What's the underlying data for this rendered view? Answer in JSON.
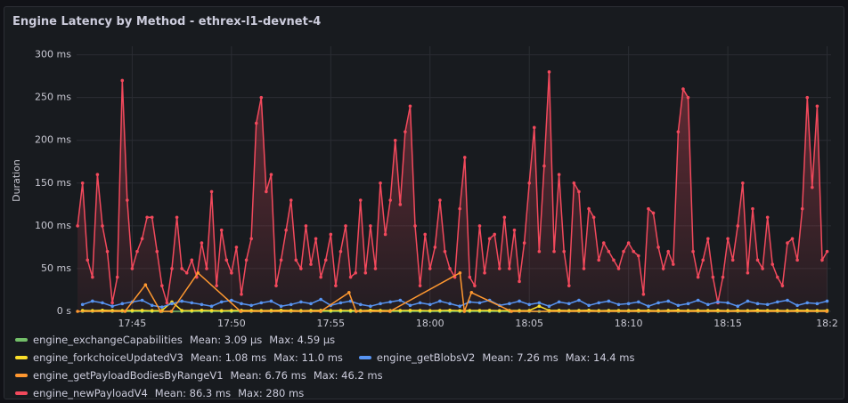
{
  "chart_data": {
    "type": "line",
    "title": "Engine Latency by Method - ethrex-l1-devnet-4",
    "y_label": "Duration",
    "xlim": [
      1062.2,
      1100.2
    ],
    "xticks": [
      {
        "value": 1065,
        "label": "17:45"
      },
      {
        "value": 1070,
        "label": "17:50"
      },
      {
        "value": 1075,
        "label": "17:55"
      },
      {
        "value": 1080,
        "label": "18:00"
      },
      {
        "value": 1085,
        "label": "18:05"
      },
      {
        "value": 1090,
        "label": "18:10"
      },
      {
        "value": 1095,
        "label": "18:15"
      },
      {
        "value": 1100,
        "label": "18:2"
      }
    ],
    "ylim": [
      0,
      310
    ],
    "yticks": [
      {
        "value": 0,
        "label": "0 s"
      },
      {
        "value": 50,
        "label": "50 ms"
      },
      {
        "value": 100,
        "label": "100 ms"
      },
      {
        "value": 150,
        "label": "150 ms"
      },
      {
        "value": 200,
        "label": "200 ms"
      },
      {
        "value": 250,
        "label": "250 ms"
      },
      {
        "value": 300,
        "label": "300 ms"
      }
    ],
    "grid": true,
    "series": [
      {
        "name": "engine_newPayloadV4",
        "color": "#f2495c",
        "fill": true,
        "stats": [
          "Mean: 86.3 ms",
          "Max: 280 ms"
        ],
        "x": [
          1062.25,
          1062.5,
          1062.75,
          1063,
          1063.25,
          1063.5,
          1063.75,
          1064,
          1064.25,
          1064.5,
          1064.75,
          1065,
          1065.25,
          1065.5,
          1065.75,
          1066,
          1066.25,
          1066.5,
          1066.75,
          1067,
          1067.25,
          1067.5,
          1067.75,
          1068,
          1068.25,
          1068.5,
          1068.75,
          1069,
          1069.25,
          1069.5,
          1069.75,
          1070,
          1070.25,
          1070.5,
          1070.75,
          1071,
          1071.25,
          1071.5,
          1071.75,
          1072,
          1072.25,
          1072.5,
          1072.75,
          1073,
          1073.25,
          1073.5,
          1073.75,
          1074,
          1074.25,
          1074.5,
          1074.75,
          1075,
          1075.25,
          1075.5,
          1075.75,
          1076,
          1076.25,
          1076.5,
          1076.75,
          1077,
          1077.25,
          1077.5,
          1077.75,
          1078,
          1078.25,
          1078.5,
          1078.75,
          1079,
          1079.25,
          1079.5,
          1079.75,
          1080,
          1080.25,
          1080.5,
          1080.75,
          1081,
          1081.25,
          1081.5,
          1081.75,
          1082,
          1082.25,
          1082.5,
          1082.75,
          1083,
          1083.25,
          1083.5,
          1083.75,
          1084,
          1084.25,
          1084.5,
          1084.75,
          1085,
          1085.25,
          1085.5,
          1085.75,
          1086,
          1086.25,
          1086.5,
          1086.75,
          1087,
          1087.25,
          1087.5,
          1087.75,
          1088,
          1088.25,
          1088.5,
          1088.75,
          1089,
          1089.25,
          1089.5,
          1089.75,
          1090,
          1090.25,
          1090.5,
          1090.75,
          1091,
          1091.25,
          1091.5,
          1091.75,
          1092,
          1092.25,
          1092.5,
          1092.75,
          1093,
          1093.25,
          1093.5,
          1093.75,
          1094,
          1094.25,
          1094.5,
          1094.75,
          1095,
          1095.25,
          1095.5,
          1095.75,
          1096,
          1096.25,
          1096.5,
          1096.75,
          1097,
          1097.25,
          1097.5,
          1097.75,
          1098,
          1098.25,
          1098.5,
          1098.75,
          1099,
          1099.25,
          1099.5,
          1099.75,
          1100
        ],
        "values": [
          100,
          150,
          60,
          40,
          160,
          100,
          70,
          10,
          40,
          270,
          130,
          50,
          70,
          85,
          110,
          110,
          70,
          30,
          10,
          50,
          110,
          50,
          45,
          60,
          40,
          80,
          50,
          140,
          30,
          95,
          60,
          45,
          75,
          20,
          60,
          85,
          220,
          250,
          140,
          160,
          30,
          60,
          95,
          130,
          60,
          50,
          100,
          55,
          85,
          40,
          60,
          90,
          30,
          70,
          100,
          40,
          45,
          130,
          45,
          100,
          50,
          150,
          90,
          130,
          200,
          125,
          210,
          240,
          100,
          30,
          90,
          50,
          75,
          130,
          70,
          50,
          40,
          120,
          180,
          40,
          30,
          100,
          45,
          85,
          90,
          50,
          110,
          50,
          95,
          35,
          80,
          150,
          215,
          70,
          170,
          280,
          70,
          160,
          70,
          30,
          150,
          140,
          50,
          120,
          110,
          60,
          80,
          70,
          60,
          50,
          70,
          80,
          70,
          65,
          20,
          120,
          115,
          75,
          50,
          70,
          55,
          210,
          260,
          250,
          70,
          40,
          60,
          85,
          40,
          10,
          40,
          85,
          60,
          100,
          150,
          45,
          120,
          60,
          50,
          110,
          55,
          40,
          30,
          80,
          85,
          60,
          120,
          250,
          145,
          240,
          60,
          70
        ]
      },
      {
        "name": "engine_exchangeCapabilities",
        "color": "#73bf69",
        "stats": [
          "Mean: 3.09 µs",
          "Max: 4.59 µs"
        ],
        "x": [
          1062.5,
          1063,
          1063.5,
          1064,
          1064.5,
          1065,
          1065.5,
          1066,
          1066.5,
          1067,
          1067.5,
          1068,
          1068.5,
          1069,
          1069.5,
          1070,
          1070.5,
          1071,
          1071.5,
          1072,
          1072.5,
          1073,
          1073.5,
          1074,
          1074.5,
          1075,
          1075.5,
          1076,
          1076.5,
          1077,
          1077.5,
          1078,
          1078.5,
          1079,
          1079.5,
          1080,
          1080.5,
          1081,
          1081.5,
          1082,
          1082.5,
          1083,
          1083.5,
          1084,
          1084.5,
          1085,
          1085.5,
          1086,
          1086.5,
          1087,
          1087.5,
          1088,
          1088.5,
          1089,
          1089.5,
          1090,
          1090.5,
          1091,
          1091.5,
          1092,
          1092.5,
          1093,
          1093.5,
          1094,
          1094.5,
          1095,
          1095.5,
          1096,
          1096.5,
          1097,
          1097.5,
          1098,
          1098.5,
          1099,
          1099.5,
          1100
        ],
        "values": [
          0.003,
          0.0031,
          0.0029,
          0.003,
          0.0032,
          0.0028,
          0.003,
          0.0031,
          0.0046,
          0.003,
          0.0029,
          0.003,
          0.0031,
          0.003,
          0.0028,
          0.003,
          0.0032,
          0.003,
          0.0029,
          0.0031,
          0.003,
          0.003,
          0.0028,
          0.0031,
          0.003,
          0.0029,
          0.003,
          0.0032,
          0.003,
          0.0031,
          0.003,
          0.0029,
          0.003,
          0.0031,
          0.0028,
          0.003,
          0.0032,
          0.003,
          0.0029,
          0.0031,
          0.003,
          0.003,
          0.0029,
          0.0031,
          0.003,
          0.0028,
          0.003,
          0.0032,
          0.003,
          0.0029,
          0.0031,
          0.003,
          0.003,
          0.0028,
          0.0031,
          0.003,
          0.0029,
          0.003,
          0.0032,
          0.003,
          0.0031,
          0.003,
          0.0029,
          0.003,
          0.0031,
          0.0028,
          0.003,
          0.0032,
          0.003,
          0.0029,
          0.0031,
          0.003,
          0.003,
          0.0029,
          0.0031,
          0.003
        ]
      },
      {
        "name": "engine_forkchoiceUpdatedV3",
        "color": "#fade2a",
        "stats": [
          "Mean: 1.08 ms",
          "Max: 11.0 ms"
        ],
        "x": [
          1062.5,
          1063,
          1063.5,
          1064,
          1064.5,
          1065,
          1065.5,
          1066,
          1066.5,
          1067,
          1067.5,
          1068,
          1068.5,
          1069,
          1069.5,
          1070,
          1070.5,
          1071,
          1071.5,
          1072,
          1072.5,
          1073,
          1073.5,
          1074,
          1074.5,
          1075,
          1075.5,
          1076,
          1076.5,
          1077,
          1077.5,
          1078,
          1078.5,
          1079,
          1079.5,
          1080,
          1080.5,
          1081,
          1081.5,
          1082,
          1082.5,
          1083,
          1083.5,
          1084,
          1084.5,
          1085,
          1085.5,
          1086,
          1086.5,
          1087,
          1087.5,
          1088,
          1088.5,
          1089,
          1089.5,
          1090,
          1090.5,
          1091,
          1091.5,
          1092,
          1092.5,
          1093,
          1093.5,
          1094,
          1094.5,
          1095,
          1095.5,
          1096,
          1096.5,
          1097,
          1097.5,
          1098,
          1098.5,
          1099,
          1099.5,
          1100
        ],
        "values": [
          1,
          0.8,
          1.2,
          1,
          0.9,
          1,
          1.1,
          0.8,
          1,
          11,
          1,
          0.9,
          1.2,
          1,
          0.8,
          1,
          1.1,
          1,
          0.9,
          1,
          1.2,
          1,
          0.8,
          1,
          1.1,
          0.9,
          1,
          1,
          0.8,
          1.2,
          1,
          0.9,
          1,
          1.1,
          1,
          0.8,
          1,
          1.2,
          0.9,
          1,
          1,
          1.1,
          0.8,
          1,
          0.9,
          1,
          6,
          1,
          1.1,
          0.9,
          1,
          1.2,
          0.8,
          1,
          1,
          0.9,
          1.1,
          1,
          0.8,
          1,
          1.2,
          0.9,
          1,
          1,
          1.1,
          0.8,
          1,
          0.9,
          1.2,
          1,
          1,
          0.8,
          1.1,
          1,
          0.9,
          1
        ]
      },
      {
        "name": "engine_getBlobsV2",
        "color": "#5794f2",
        "stats": [
          "Mean: 7.26 ms",
          "Max: 14.4 ms"
        ],
        "x": [
          1062.5,
          1063,
          1063.5,
          1064,
          1064.5,
          1065,
          1065.5,
          1066,
          1066.5,
          1067,
          1067.5,
          1068,
          1068.5,
          1069,
          1069.5,
          1070,
          1070.5,
          1071,
          1071.5,
          1072,
          1072.5,
          1073,
          1073.5,
          1074,
          1074.5,
          1075,
          1075.5,
          1076,
          1076.5,
          1077,
          1077.5,
          1078,
          1078.5,
          1079,
          1079.5,
          1080,
          1080.5,
          1081,
          1081.5,
          1082,
          1082.5,
          1083,
          1083.5,
          1084,
          1084.5,
          1085,
          1085.5,
          1086,
          1086.5,
          1087,
          1087.5,
          1088,
          1088.5,
          1089,
          1089.5,
          1090,
          1090.5,
          1091,
          1091.5,
          1092,
          1092.5,
          1093,
          1093.5,
          1094,
          1094.5,
          1095,
          1095.5,
          1096,
          1096.5,
          1097,
          1097.5,
          1098,
          1098.5,
          1099,
          1099.5,
          1100
        ],
        "values": [
          8,
          12,
          10,
          6,
          9,
          11,
          13,
          7,
          5,
          9,
          12,
          10,
          8,
          6,
          11,
          13,
          9,
          7,
          10,
          12,
          6,
          8,
          11,
          9,
          14,
          7,
          10,
          12,
          8,
          6,
          9,
          11,
          13,
          7,
          10,
          8,
          12,
          9,
          6,
          11,
          10,
          13,
          7,
          9,
          12,
          8,
          10,
          6,
          11,
          9,
          13,
          7,
          10,
          12,
          8,
          9,
          11,
          6,
          10,
          12,
          7,
          9,
          13,
          8,
          11,
          10,
          6,
          12,
          9,
          8,
          11,
          13,
          7,
          10,
          9,
          12
        ]
      },
      {
        "name": "engine_getPayloadBodiesByRangeV1",
        "color": "#ff9830",
        "stats": [
          "Mean: 6.76 ms",
          "Max: 46.2 ms"
        ],
        "x": [
          1062.25,
          1064.64,
          1065.67,
          1066.43,
          1066.97,
          1068.31,
          1070.46,
          1074.49,
          1075.92,
          1076.28,
          1077.98,
          1081.51,
          1081.73,
          1082.09,
          1084.1,
          1099.98
        ],
        "values": [
          0,
          0,
          31,
          0,
          0,
          45,
          0,
          0,
          22,
          0,
          0,
          45,
          0,
          22,
          0,
          0
        ]
      }
    ]
  }
}
